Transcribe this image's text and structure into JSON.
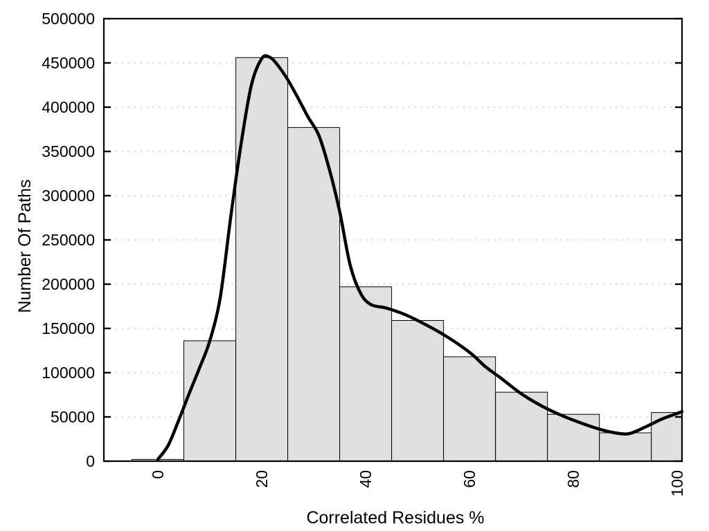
{
  "chart_data": {
    "type": "bar",
    "subtype": "histogram-with-smoothed-line",
    "title": "",
    "xlabel": "Correlated Residues %",
    "ylabel": "Number Of Paths",
    "xlim": [
      -10.4,
      100.9
    ],
    "ylim": [
      0,
      500000
    ],
    "x_ticks": [
      0,
      20,
      40,
      60,
      80,
      100
    ],
    "y_ticks": [
      0,
      50000,
      100000,
      150000,
      200000,
      250000,
      300000,
      350000,
      400000,
      450000,
      500000
    ],
    "grid": "horizontal-dotted",
    "legend_position": "none",
    "bin_width": 10,
    "categories": [
      0,
      10,
      20,
      30,
      40,
      50,
      60,
      70,
      80,
      90,
      100
    ],
    "values": [
      2000,
      136000,
      456000,
      377000,
      197000,
      159000,
      118000,
      78000,
      53000,
      32000,
      55000
    ],
    "series": [
      {
        "name": "smoothed-frequency-curve",
        "type": "line",
        "points": [
          [
            0,
            2000
          ],
          [
            2,
            18000
          ],
          [
            4,
            46000
          ],
          [
            6,
            76000
          ],
          [
            8,
            105000
          ],
          [
            10,
            136000
          ],
          [
            12,
            185000
          ],
          [
            14,
            275000
          ],
          [
            16,
            358000
          ],
          [
            18,
            425000
          ],
          [
            20,
            455000
          ],
          [
            21.5,
            456500
          ],
          [
            23,
            448000
          ],
          [
            25,
            431000
          ],
          [
            27,
            410000
          ],
          [
            29,
            388000
          ],
          [
            31,
            368000
          ],
          [
            33,
            330000
          ],
          [
            35,
            282000
          ],
          [
            37,
            222000
          ],
          [
            39,
            190000
          ],
          [
            41,
            177000
          ],
          [
            44,
            173000
          ],
          [
            47,
            167000
          ],
          [
            50,
            159000
          ],
          [
            55,
            143000
          ],
          [
            60,
            123000
          ],
          [
            63,
            107000
          ],
          [
            66,
            94000
          ],
          [
            70,
            76000
          ],
          [
            74,
            62000
          ],
          [
            78,
            51000
          ],
          [
            82,
            42000
          ],
          [
            86,
            34500
          ],
          [
            89,
            31200
          ],
          [
            91,
            31500
          ],
          [
            94,
            39000
          ],
          [
            97,
            47500
          ],
          [
            100,
            54000
          ],
          [
            100.9,
            56000
          ]
        ]
      }
    ],
    "colors": {
      "bar_fill": "#e0e0e0",
      "bar_stroke": "#000000",
      "curve": "#000000",
      "grid": "#c4c4c4",
      "axis": "#000000",
      "text": "#000000",
      "background": "#ffffff"
    }
  }
}
